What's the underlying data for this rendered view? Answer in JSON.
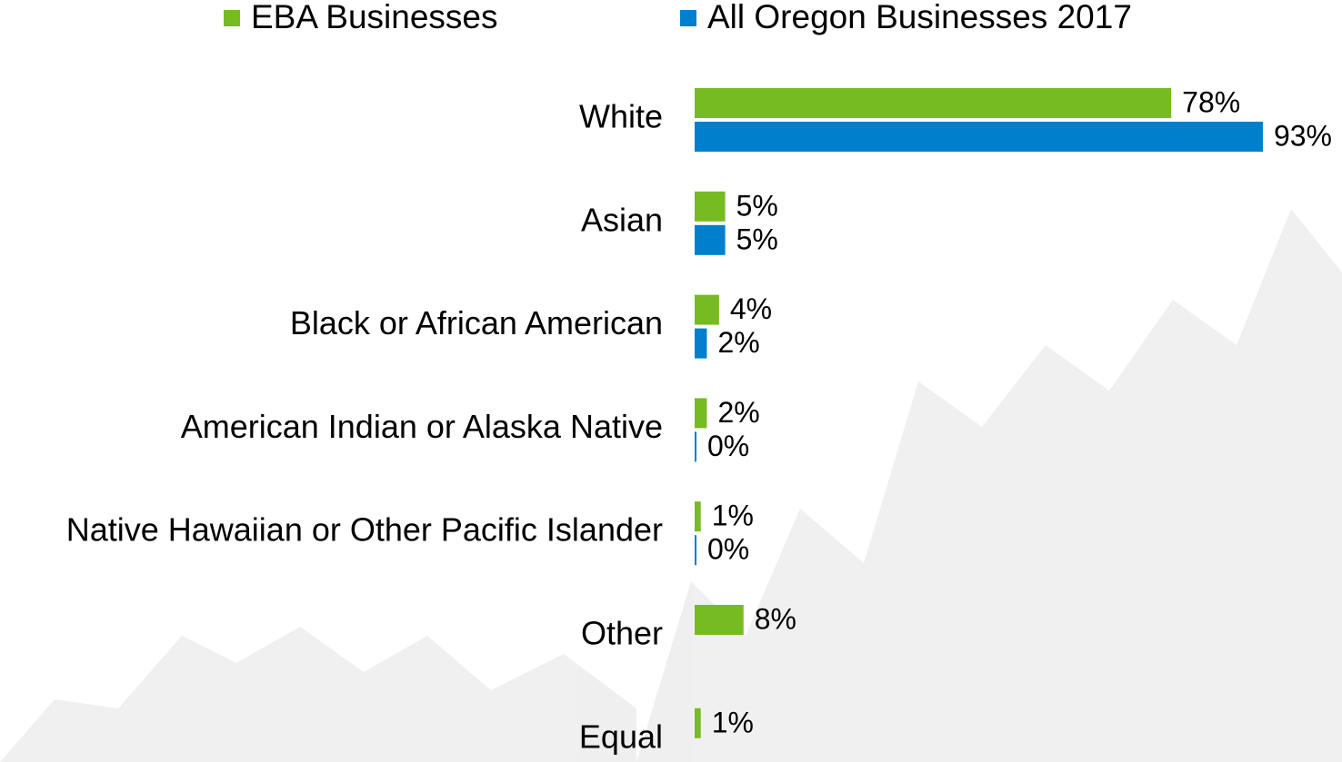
{
  "chart_data": {
    "type": "hbar",
    "categories": [
      "White",
      "Asian",
      "Black or African American",
      "American Indian or Alaska Native",
      "Native Hawaiian or Other Pacific Islander",
      "Other",
      "Equal"
    ],
    "series": [
      {
        "name": "EBA Businesses",
        "color": "#77bb22",
        "values": [
          78,
          5,
          4,
          2,
          1,
          8,
          1
        ],
        "value_labels": [
          "78%",
          "5%",
          "4%",
          "2%",
          "1%",
          "8%",
          "1%"
        ]
      },
      {
        "name": "All Oregon Businesses 2017",
        "color": "#0080cc",
        "values": [
          93,
          5,
          2,
          0,
          0,
          null,
          null
        ],
        "value_labels": [
          "93%",
          "5%",
          "2%",
          "0%",
          "0%",
          null,
          null
        ]
      }
    ],
    "xlim": [
      0,
      100
    ],
    "legend": "top"
  }
}
